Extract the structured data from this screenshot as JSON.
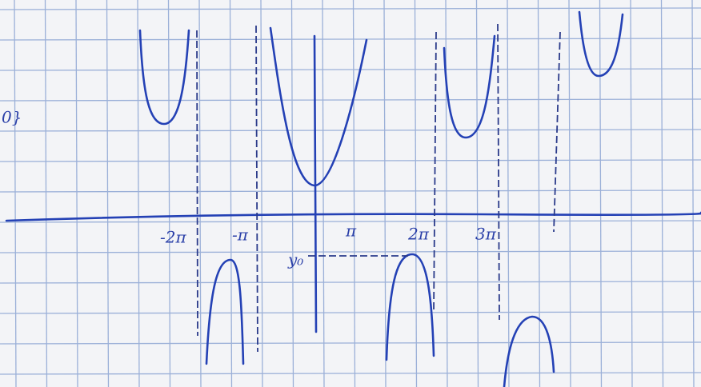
{
  "note": "0}",
  "ticks": [
    "-2π",
    "-π",
    "π",
    "2π",
    "3π"
  ],
  "y0": "y₀"
}
